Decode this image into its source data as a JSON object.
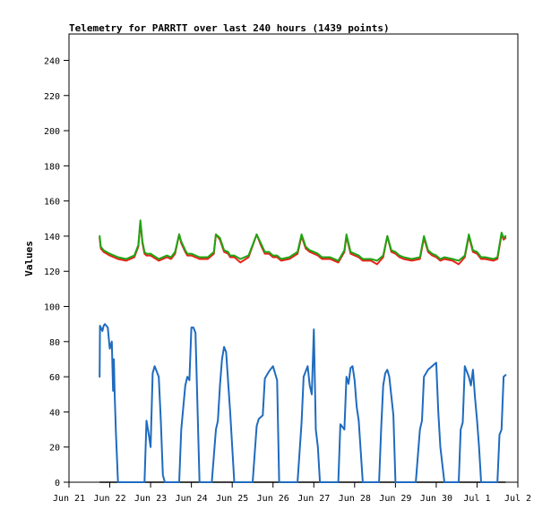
{
  "chart_data": {
    "type": "line",
    "title": "Telemetry for PARRTT over last 240 hours (1439 points)",
    "ylabel": "Values",
    "xlabel": "",
    "ylim": [
      0,
      255
    ],
    "yticks": [
      0,
      20,
      40,
      60,
      80,
      100,
      120,
      140,
      160,
      180,
      200,
      220,
      240
    ],
    "x_ticks": [
      "Jun 21",
      "Jun 22",
      "Jun 23",
      "Jun 24",
      "Jun 25",
      "Jun 26",
      "Jun 27",
      "Jun 28",
      "Jun 29",
      "Jun 30",
      "Jul 1",
      "Jul 2"
    ],
    "xlim_days": [
      0,
      11
    ],
    "grid": false,
    "legend": "none",
    "colors": {
      "red_series": "#e8231b",
      "green_series": "#1fa513",
      "blue_series": "#1f6bbf",
      "black_series": "#000000"
    },
    "series": [
      {
        "color": "#e8231b",
        "x": [
          0.75,
          0.78,
          0.85,
          1.0,
          1.2,
          1.4,
          1.6,
          1.7,
          1.75,
          1.8,
          1.85,
          1.9,
          2.0,
          2.2,
          2.4,
          2.5,
          2.6,
          2.7,
          2.75,
          2.85,
          2.9,
          3.0,
          3.2,
          3.4,
          3.55,
          3.6,
          3.7,
          3.8,
          3.9,
          3.95,
          4.05,
          4.2,
          4.4,
          4.6,
          4.7,
          4.8,
          4.9,
          5.0,
          5.1,
          5.2,
          5.4,
          5.6,
          5.7,
          5.8,
          5.9,
          6.0,
          6.1,
          6.2,
          6.4,
          6.6,
          6.75,
          6.8,
          6.9,
          7.0,
          7.1,
          7.2,
          7.4,
          7.55,
          7.7,
          7.8,
          7.9,
          8.0,
          8.1,
          8.2,
          8.4,
          8.6,
          8.7,
          8.8,
          8.9,
          9.0,
          9.1,
          9.2,
          9.4,
          9.55,
          9.7,
          9.8,
          9.9,
          10.0,
          10.1,
          10.2,
          10.4,
          10.5,
          10.6,
          10.65,
          10.7
        ],
        "y": [
          139,
          133,
          131,
          129,
          127,
          126,
          128,
          134,
          148,
          136,
          130,
          129,
          129,
          126,
          128,
          127,
          130,
          141,
          136,
          131,
          129,
          129,
          127,
          127,
          130,
          141,
          138,
          131,
          130,
          128,
          128,
          125,
          128,
          141,
          135,
          130,
          130,
          128,
          128,
          126,
          127,
          130,
          140,
          133,
          131,
          130,
          129,
          127,
          127,
          125,
          131,
          140,
          130,
          129,
          128,
          126,
          126,
          124,
          128,
          140,
          131,
          130,
          128,
          127,
          126,
          127,
          139,
          131,
          129,
          128,
          126,
          127,
          126,
          124,
          128,
          140,
          131,
          130,
          127,
          127,
          126,
          127,
          141,
          138,
          139
        ]
      },
      {
        "color": "#1fa513",
        "x": [
          0.75,
          0.78,
          0.85,
          1.0,
          1.2,
          1.4,
          1.6,
          1.7,
          1.75,
          1.8,
          1.85,
          1.9,
          2.0,
          2.2,
          2.4,
          2.5,
          2.6,
          2.7,
          2.75,
          2.85,
          2.9,
          3.0,
          3.2,
          3.4,
          3.55,
          3.6,
          3.7,
          3.8,
          3.9,
          3.95,
          4.05,
          4.2,
          4.4,
          4.6,
          4.7,
          4.8,
          4.9,
          5.0,
          5.1,
          5.2,
          5.4,
          5.6,
          5.7,
          5.8,
          5.9,
          6.0,
          6.1,
          6.2,
          6.4,
          6.6,
          6.75,
          6.8,
          6.9,
          7.0,
          7.1,
          7.2,
          7.4,
          7.55,
          7.7,
          7.8,
          7.9,
          8.0,
          8.1,
          8.2,
          8.4,
          8.6,
          8.7,
          8.8,
          8.9,
          9.0,
          9.1,
          9.2,
          9.4,
          9.55,
          9.7,
          9.8,
          9.9,
          10.0,
          10.1,
          10.2,
          10.4,
          10.5,
          10.6,
          10.65,
          10.7
        ],
        "y": [
          140,
          134,
          132,
          130,
          128,
          127,
          129,
          135,
          149,
          137,
          131,
          130,
          130,
          127,
          129,
          128,
          131,
          141,
          137,
          132,
          130,
          130,
          128,
          128,
          131,
          141,
          139,
          132,
          131,
          129,
          129,
          127,
          129,
          141,
          136,
          131,
          131,
          129,
          129,
          127,
          128,
          131,
          141,
          134,
          132,
          131,
          130,
          128,
          128,
          126,
          132,
          141,
          131,
          130,
          129,
          127,
          127,
          126,
          129,
          140,
          132,
          131,
          129,
          128,
          127,
          128,
          140,
          132,
          130,
          129,
          127,
          128,
          127,
          126,
          129,
          141,
          132,
          131,
          128,
          128,
          127,
          128,
          142,
          139,
          140
        ]
      },
      {
        "color": "#1f6bbf",
        "x": [
          0.75,
          0.76,
          0.78,
          0.82,
          0.85,
          0.88,
          0.95,
          1.0,
          1.05,
          1.08,
          1.1,
          1.12,
          1.15,
          1.2,
          1.6,
          1.85,
          1.9,
          1.95,
          2.0,
          2.05,
          2.1,
          2.2,
          2.25,
          2.3,
          2.35,
          2.7,
          2.75,
          2.85,
          2.9,
          2.95,
          3.0,
          3.05,
          3.1,
          3.2,
          3.25,
          3.3,
          3.5,
          3.6,
          3.65,
          3.7,
          3.75,
          3.8,
          3.85,
          3.95,
          4.0,
          4.05,
          4.1,
          4.2,
          4.5,
          4.6,
          4.65,
          4.75,
          4.8,
          4.9,
          5.0,
          5.1,
          5.15,
          5.2,
          5.3,
          5.6,
          5.7,
          5.75,
          5.85,
          5.9,
          5.95,
          6.0,
          6.05,
          6.1,
          6.15,
          6.2,
          6.3,
          6.6,
          6.65,
          6.75,
          6.8,
          6.85,
          6.9,
          6.95,
          7.0,
          7.05,
          7.1,
          7.2,
          7.5,
          7.6,
          7.65,
          7.7,
          7.75,
          7.8,
          7.85,
          7.95,
          8.0,
          8.1,
          8.2,
          8.3,
          8.5,
          8.6,
          8.65,
          8.7,
          8.8,
          8.9,
          9.0,
          9.05,
          9.1,
          9.2,
          9.5,
          9.55,
          9.6,
          9.65,
          9.7,
          9.8,
          9.85,
          9.9,
          9.95,
          10.0,
          10.05,
          10.1,
          10.2,
          10.5,
          10.55,
          10.6,
          10.65,
          10.7
        ],
        "y": [
          60,
          89,
          88,
          86,
          89,
          90,
          88,
          76,
          80,
          52,
          70,
          50,
          28,
          0,
          0,
          0,
          35,
          28,
          20,
          62,
          66,
          60,
          35,
          4,
          0,
          0,
          30,
          55,
          60,
          58,
          88,
          88,
          85,
          0,
          0,
          0,
          0,
          30,
          35,
          55,
          70,
          77,
          74,
          40,
          20,
          0,
          0,
          0,
          0,
          32,
          36,
          38,
          59,
          63,
          66,
          58,
          0,
          0,
          0,
          0,
          34,
          60,
          66,
          55,
          50,
          87,
          30,
          20,
          0,
          0,
          0,
          0,
          33,
          30,
          60,
          56,
          65,
          66,
          58,
          43,
          35,
          0,
          0,
          0,
          30,
          55,
          62,
          64,
          60,
          38,
          0,
          0,
          0,
          0,
          0,
          30,
          35,
          60,
          64,
          66,
          68,
          40,
          20,
          0,
          0,
          0,
          30,
          34,
          66,
          60,
          55,
          64,
          48,
          35,
          20,
          0,
          0,
          0,
          27,
          30,
          60,
          61
        ]
      }
    ],
    "baseline": {
      "color": "#000000",
      "x": [
        0.75,
        10.7
      ],
      "y": [
        0,
        0
      ]
    }
  }
}
